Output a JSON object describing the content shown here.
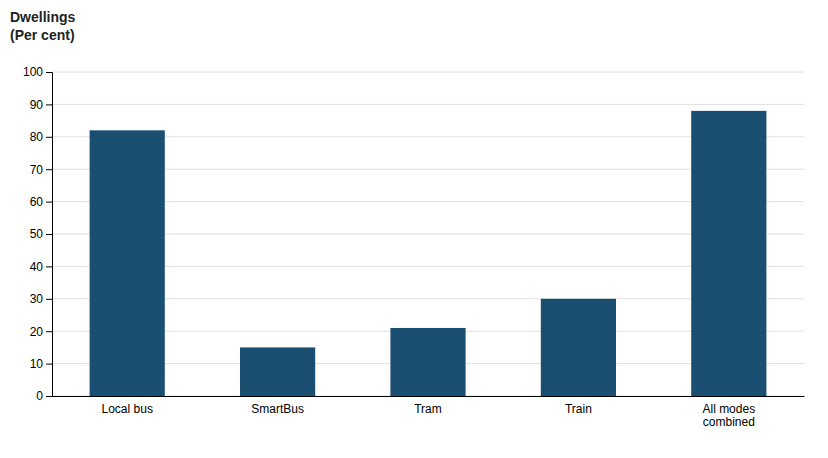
{
  "chart_data": {
    "type": "bar",
    "ylabel": "Dwellings\n(Per cent)",
    "categories": [
      "Local bus",
      "SmartBus",
      "Tram",
      "Train",
      "All modes\ncombined"
    ],
    "values": [
      82,
      15,
      21,
      30,
      88
    ],
    "color": "#1b4f72",
    "ylim": [
      0,
      100
    ],
    "yticks": [
      0,
      10,
      20,
      30,
      40,
      50,
      60,
      70,
      80,
      90,
      100
    ],
    "grid": true
  }
}
